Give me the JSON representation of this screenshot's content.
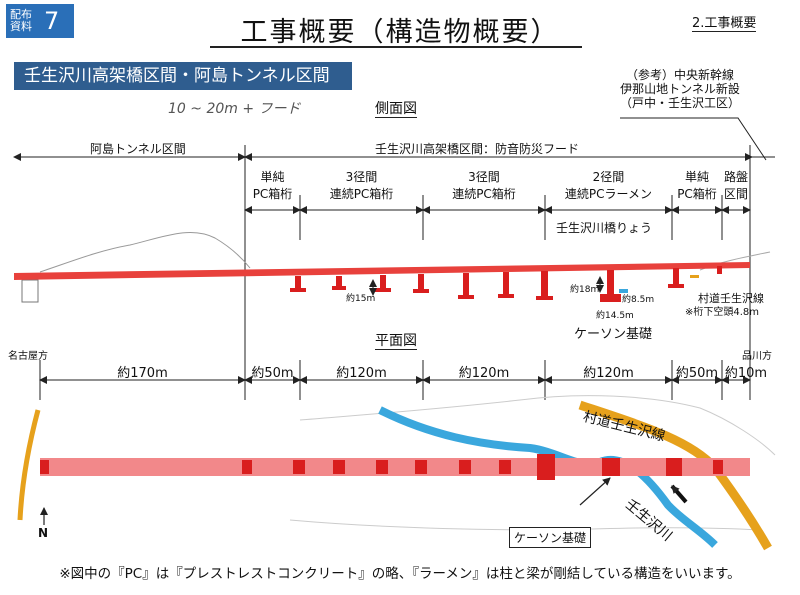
{
  "header": {
    "badge_line1": "配布",
    "badge_line2": "資料",
    "badge_number": "7",
    "title": "工事概要（構造物概要）",
    "chapter": "2.工事概要",
    "section": "壬生沢川高架橋区間・阿島トンネル区間"
  },
  "reference": {
    "line1": "（参考）中央新幹線",
    "line2": "伊那山地トンネル新設",
    "line3": "（戸中・壬生沢工区）"
  },
  "handwriting": "10 ~ 20m + フード",
  "side_view": {
    "heading": "側面図",
    "tunnel_section": "阿島トンネル区間",
    "viaduct_section": "壬生沢川高架橋区間：防音防災フード",
    "structures": [
      {
        "line1": "単純",
        "line2": "PC箱桁"
      },
      {
        "line1": "3径間",
        "line2": "連続PC箱桁"
      },
      {
        "line1": "3径間",
        "line2": "連続PC箱桁"
      },
      {
        "line1": "2径間",
        "line2": "連続PCラーメン"
      },
      {
        "line1": "単純",
        "line2": "PC箱桁"
      },
      {
        "line1": "路盤",
        "line2": "区間"
      }
    ],
    "bridge_name": "壬生沢川橋りょう",
    "height_15": "約15m",
    "height_18": "約18m",
    "dia_85": "約8.5m",
    "dia_145": "約14.5m",
    "caisson": "ケーソン基礎",
    "road": "村道壬生沢線",
    "clearance": "※桁下空頭4.8m"
  },
  "plan_view": {
    "heading": "平面図",
    "left_city": "名古屋方",
    "right_city": "品川方",
    "lengths": [
      "約170m",
      "約50m",
      "約120m",
      "約120m",
      "約120m",
      "約50m",
      "約10m"
    ],
    "road": "村道壬生沢線",
    "river": "壬生沢川",
    "caisson": "ケーソン基礎",
    "north": "N"
  },
  "footnote": "※図中の『PC』は『プレストレストコンクリート』の略、『ラーメン』は柱と梁が剛結している構造をいいます。",
  "colors": {
    "badge": "#2a6fb8",
    "section_bar": "#2f5d8f",
    "viaduct": "#e8413c",
    "plan_band": "#f2888a",
    "pier": "#d91e1e",
    "river": "#3aa7dd",
    "road": "#e6a11c"
  }
}
